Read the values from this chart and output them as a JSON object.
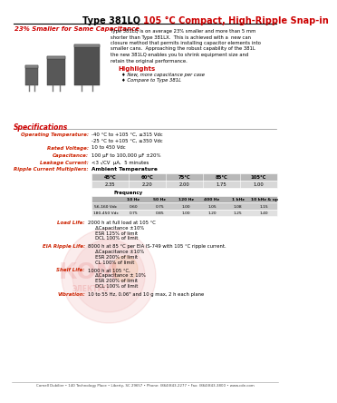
{
  "title_black": "Type 381LQ ",
  "title_red": "105 °C Compact, High-Ripple Snap-in",
  "subtitle": "23% Smaller for Same Capacitance",
  "body_text": [
    "Type 381LQ is on average 23% smaller and more than 5 mm",
    "shorter than Type 381LX.  This is achieved with a  new can",
    "closure method that permits installing capacitor elements into",
    "smaller cans.  Approaching the robust capability of the 381L",
    "the new 381LQ enables you to shrink equipment size and",
    "retain the original performance."
  ],
  "highlights_title": "Highlights",
  "highlights": [
    "♦ New, more capacitance per case",
    "♦ Compare to Type 381L"
  ],
  "specs_title": "Specifications",
  "spec_labels": [
    "Operating Temperature:",
    "Rated Voltage:",
    "Capacitance:",
    "Leakage Current:",
    "Ripple Current Multipliers:"
  ],
  "spec_values": [
    [
      "-40 °C to +105 °C, ≤315 Vdc",
      "-25 °C to +105 °C, ≥350 Vdc"
    ],
    [
      "10 to 450 Vdc"
    ],
    [
      "100 μF to 100,000 μF ±20%"
    ],
    [
      "<3 √CV  μA,  5 minutes"
    ],
    [
      "Ambient Temperature"
    ]
  ],
  "ambient_headers": [
    "45°C",
    "60°C",
    "75°C",
    "85°C",
    "105°C"
  ],
  "ambient_values": [
    "2.35",
    "2.20",
    "2.00",
    "1.75",
    "1.00"
  ],
  "freq_label": "Frequency",
  "freq_headers": [
    "10 Hz",
    "50 Hz",
    "120 Hz",
    "400 Hz",
    "1 kHz",
    "10 kHz & up"
  ],
  "freq_row1_label": "56-160 Vdc",
  "freq_row1": [
    "0.60",
    "0.75",
    "1.00",
    "1.05",
    "1.08",
    "1.15"
  ],
  "freq_row2_label": "180-450 Vdc",
  "freq_row2": [
    "0.75",
    "0.85",
    "1.00",
    "1.20",
    "1.25",
    "1.40"
  ],
  "load_life_label": "Load Life:",
  "load_life_lines": [
    "2000 h at full load at 105 °C",
    "     ΔCapacitance ±10%",
    "     ESR 125% of limit",
    "     DCL 100% of limit"
  ],
  "eia_label": "EIA Ripple Life:",
  "eia_lines": [
    "8000 h at 85 °C per EIA IS-749 with 105 °C ripple current.",
    "     ΔCapacitance ±10%",
    "     ESR 200% of limit",
    "     CL 100% of limit"
  ],
  "shelf_label": "Shelf Life:",
  "shelf_lines": [
    "1000 h at 105 °C,",
    "     ΔCapacitance ± 10%",
    "     ESR 200% of limit",
    "     DCL 100% of limit"
  ],
  "vib_label": "Vibration:",
  "vib_lines": [
    "10 to 55 Hz, 0.06\" and 10 g max, 2 h each plane"
  ],
  "footer": "Cornell Dubilier • 140 Technology Place • Liberty, SC 29657 • Phone: (864)843-2277 • Fax: (864)843-3800 • www.cde.com",
  "bg_color": "#ffffff",
  "red_color": "#cc0000",
  "label_color": "#cc2200",
  "line_color": "#888888"
}
